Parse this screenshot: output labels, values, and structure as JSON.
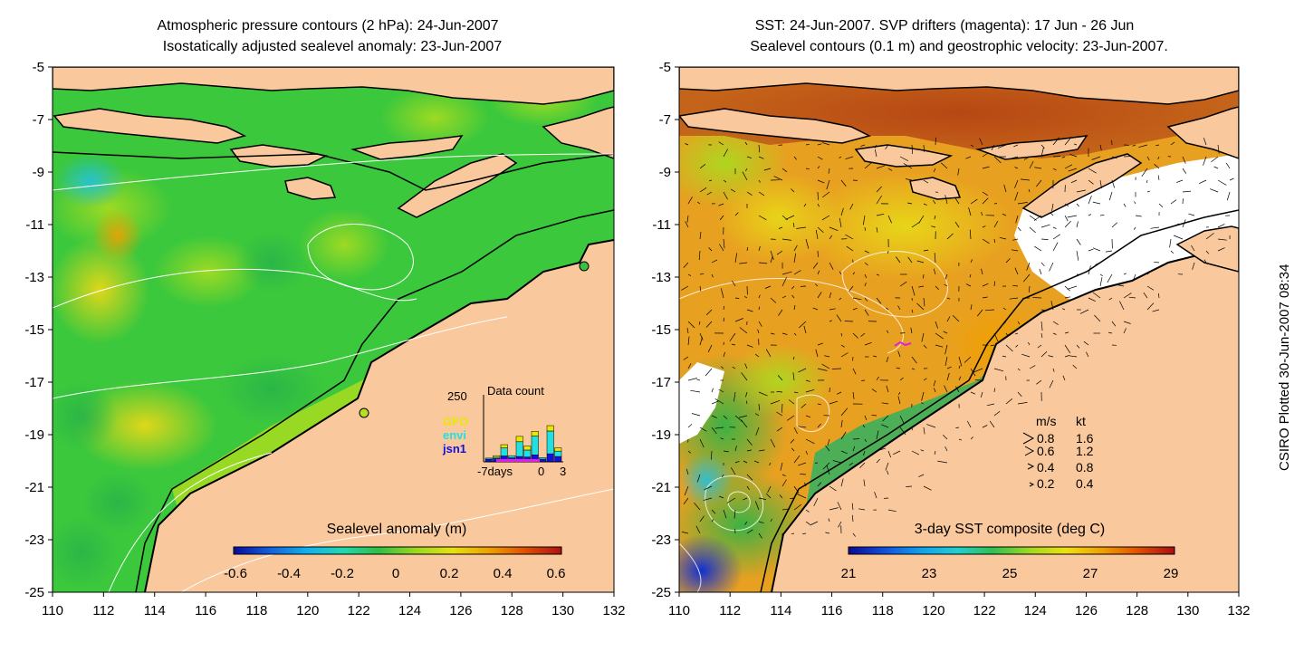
{
  "left_panel": {
    "title_line1": "Atmospheric pressure contours (2 hPa): 24-Jun-2007",
    "title_line2": "Isostatically adjusted sealevel anomaly: 23-Jun-2007",
    "y_ticks": [
      "-5",
      "-7",
      "-9",
      "-11",
      "-13",
      "-15",
      "-17",
      "-19",
      "-21",
      "-23",
      "-25"
    ],
    "x_ticks": [
      "110",
      "112",
      "114",
      "116",
      "118",
      "120",
      "122",
      "124",
      "126",
      "128",
      "130",
      "132"
    ],
    "colorbar": {
      "label": "Sealevel anomaly (m)",
      "ticks": [
        "-0.6",
        "-0.4",
        "-0.2",
        "0",
        "0.2",
        "0.4",
        "0.6"
      ],
      "colors": [
        "#0a0aa0",
        "#1060e0",
        "#10b0f0",
        "#20d8b0",
        "#30c040",
        "#9cd820",
        "#e8e010",
        "#f0a000",
        "#e05000",
        "#b01010"
      ]
    },
    "inset": {
      "title": "Data count",
      "y_max_label": "250",
      "x_labels": [
        "-7days",
        "0",
        "3"
      ],
      "legend": [
        {
          "name": "GFO",
          "color": "#e8e800"
        },
        {
          "name": "envi",
          "color": "#20e0e0"
        },
        {
          "name": "jsn1",
          "color": "#1010e0"
        }
      ],
      "bars": [
        {
          "jsn1": 10,
          "envi": 4,
          "GFO": 0
        },
        {
          "jsn1": 12,
          "envi": 5,
          "GFO": 6
        },
        {
          "jsn1": 22,
          "envi": 30,
          "GFO": 12
        },
        {
          "jsn1": 15,
          "envi": 8,
          "GFO": 0
        },
        {
          "jsn1": 20,
          "envi": 55,
          "GFO": 20
        },
        {
          "jsn1": 18,
          "envi": 26,
          "GFO": 15
        },
        {
          "jsn1": 26,
          "envi": 70,
          "GFO": 18
        },
        {
          "jsn1": 10,
          "envi": 6,
          "GFO": 0
        },
        {
          "jsn1": 30,
          "envi": 85,
          "GFO": 20
        },
        {
          "jsn1": 20,
          "envi": 20,
          "GFO": 12
        }
      ],
      "y_max": 250
    }
  },
  "right_panel": {
    "title_line1": "SST: 24-Jun-2007. SVP drifters (magenta): 17 Jun - 26 Jun",
    "title_line2": "Sealevel contours (0.1 m) and geostrophic velocity: 23-Jun-2007.",
    "y_ticks": [
      "-5",
      "-7",
      "-9",
      "-11",
      "-13",
      "-15",
      "-17",
      "-19",
      "-21",
      "-23",
      "-25"
    ],
    "x_ticks": [
      "110",
      "112",
      "114",
      "116",
      "118",
      "120",
      "122",
      "124",
      "126",
      "128",
      "130",
      "132"
    ],
    "colorbar": {
      "label": "3-day SST composite (deg C)",
      "ticks": [
        "21",
        "23",
        "25",
        "27",
        "29"
      ],
      "colors": [
        "#0a0a90",
        "#1050e0",
        "#10a0f0",
        "#20d0d0",
        "#30c050",
        "#a0d820",
        "#f0e010",
        "#f0a000",
        "#e05000",
        "#a81010"
      ]
    },
    "velocity_legend": {
      "header_ms": "m/s",
      "header_kt": "kt",
      "rows": [
        {
          "ms": "0.8",
          "kt": "1.6"
        },
        {
          "ms": "0.6",
          "kt": "1.2"
        },
        {
          "ms": "0.4",
          "kt": "0.8"
        },
        {
          "ms": "0.2",
          "kt": "0.4"
        }
      ]
    }
  },
  "credit": "CSIRO Plotted 30-Jun-2007 08:34",
  "colors": {
    "land": "#f9c89c",
    "ocean_green": "#3cc83c",
    "sst_orange": "#e8a020",
    "coast": "#000000"
  }
}
